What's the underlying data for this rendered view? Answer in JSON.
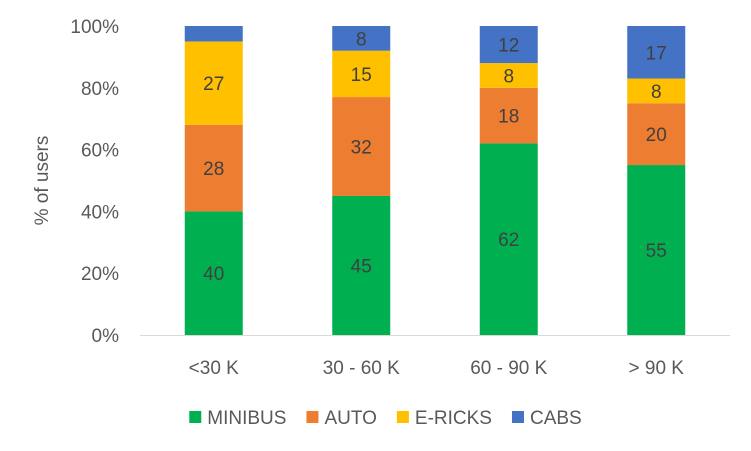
{
  "chart_data": {
    "type": "bar",
    "stacked": true,
    "categories": [
      "<30 K",
      "30 - 60 K",
      "60 - 90 K",
      "> 90 K"
    ],
    "series": [
      {
        "name": "MINIBUS",
        "values": [
          40,
          45,
          62,
          55
        ],
        "color": "#00b050"
      },
      {
        "name": "AUTO",
        "values": [
          28,
          32,
          18,
          20
        ],
        "color": "#ed7d31"
      },
      {
        "name": "E-RICKS",
        "values": [
          27,
          15,
          8,
          8
        ],
        "color": "#ffc000"
      },
      {
        "name": "CABS",
        "values": [
          5,
          8,
          12,
          17
        ],
        "color": "#4472c4"
      }
    ],
    "data_labels": [
      [
        "40",
        "45",
        "62",
        "55"
      ],
      [
        "28",
        "32",
        "18",
        "20"
      ],
      [
        "27",
        "15",
        "8",
        "8"
      ],
      [
        "",
        "8",
        "12",
        "17"
      ]
    ],
    "ylabel": "% of users",
    "ylim": [
      0,
      100
    ],
    "yticks": [
      "0%",
      "20%",
      "40%",
      "60%",
      "80%",
      "100%"
    ],
    "ytick_values": [
      0,
      20,
      40,
      60,
      80,
      100
    ],
    "grid": false,
    "legend_position": "bottom"
  }
}
